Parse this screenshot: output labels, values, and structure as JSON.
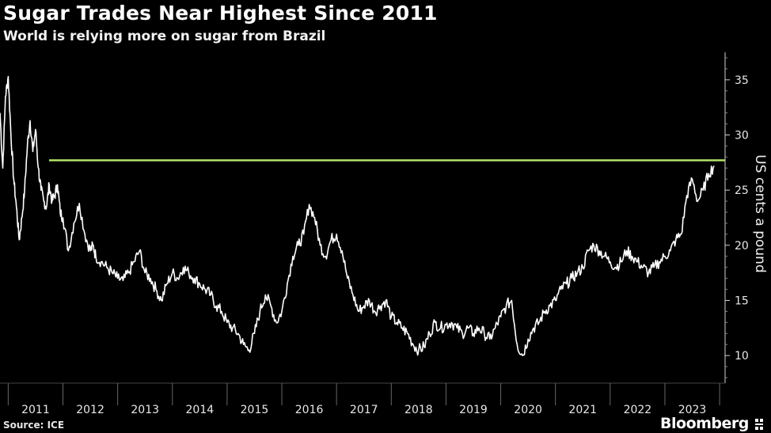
{
  "header": {
    "title": "Sugar Trades Near Highest Since 2011",
    "subtitle": "World is relying more on sugar from Brazil"
  },
  "footer": {
    "source": "Source: ICE",
    "brand": "Bloomberg"
  },
  "colors": {
    "background": "#000000",
    "line": "#ffffff",
    "reference_line": "#b4e36a"
  },
  "chart_data": {
    "type": "line",
    "title": "Sugar Trades Near Highest Since 2011",
    "subtitle": "World is relying more on sugar from Brazil",
    "xlabel": "",
    "ylabel": "US cents a pound",
    "xlim": [
      2010.85,
      2024.1
    ],
    "ylim": [
      7.5,
      37.5
    ],
    "y_ticks": [
      10,
      15,
      20,
      25,
      30,
      35
    ],
    "x_ticks": [
      "2011",
      "2012",
      "2013",
      "2014",
      "2015",
      "2016",
      "2017",
      "2018",
      "2019",
      "2020",
      "2021",
      "2022",
      "2023"
    ],
    "y_axis_position": "right",
    "grid": false,
    "reference_line": {
      "value": 27.7
    },
    "series": [
      {
        "x": [
          2010.85,
          2010.9,
          2010.95,
          2011.0,
          2011.05,
          2011.1,
          2011.15,
          2011.2,
          2011.25,
          2011.3,
          2011.35,
          2011.4,
          2011.45,
          2011.5,
          2011.55,
          2011.6,
          2011.65,
          2011.7,
          2011.75,
          2011.8,
          2011.85,
          2011.9,
          2011.95,
          2012.0,
          2012.1,
          2012.2,
          2012.3,
          2012.4,
          2012.5,
          2012.55,
          2012.6,
          2012.7,
          2012.8,
          2012.9,
          2013.0,
          2013.1,
          2013.2,
          2013.3,
          2013.4,
          2013.5,
          2013.6,
          2013.7,
          2013.8,
          2013.9,
          2014.0,
          2014.1,
          2014.2,
          2014.3,
          2014.4,
          2014.5,
          2014.6,
          2014.7,
          2014.8,
          2014.9,
          2015.0,
          2015.1,
          2015.2,
          2015.3,
          2015.4,
          2015.5,
          2015.6,
          2015.7,
          2015.8,
          2015.9,
          2016.0,
          2016.1,
          2016.2,
          2016.3,
          2016.4,
          2016.5,
          2016.6,
          2016.7,
          2016.8,
          2016.9,
          2017.0,
          2017.1,
          2017.2,
          2017.3,
          2017.4,
          2017.5,
          2017.6,
          2017.7,
          2017.8,
          2017.9,
          2018.0,
          2018.1,
          2018.2,
          2018.3,
          2018.4,
          2018.5,
          2018.6,
          2018.7,
          2018.8,
          2018.9,
          2019.0,
          2019.1,
          2019.2,
          2019.3,
          2019.4,
          2019.5,
          2019.6,
          2019.7,
          2019.8,
          2019.9,
          2020.0,
          2020.1,
          2020.2,
          2020.3,
          2020.4,
          2020.5,
          2020.6,
          2020.7,
          2020.8,
          2020.9,
          2021.0,
          2021.1,
          2021.2,
          2021.3,
          2021.4,
          2021.5,
          2021.6,
          2021.7,
          2021.8,
          2021.9,
          2022.0,
          2022.1,
          2022.2,
          2022.3,
          2022.4,
          2022.5,
          2022.6,
          2022.7,
          2022.8,
          2022.9,
          2023.0,
          2023.1,
          2023.2,
          2023.3,
          2023.4,
          2023.5,
          2023.6,
          2023.7,
          2023.8,
          2023.9
        ],
        "y": [
          32.0,
          27.0,
          33.5,
          35.3,
          30.0,
          26.0,
          23.5,
          20.5,
          22.5,
          25.0,
          29.0,
          31.3,
          28.5,
          30.5,
          27.0,
          25.0,
          24.0,
          23.5,
          25.5,
          24.0,
          24.5,
          25.5,
          23.0,
          22.5,
          19.5,
          22.0,
          23.8,
          21.0,
          19.5,
          20.0,
          19.0,
          18.5,
          18.0,
          17.5,
          17.0,
          16.8,
          17.5,
          18.5,
          19.5,
          17.5,
          17.0,
          16.0,
          15.0,
          16.5,
          17.5,
          17.0,
          18.0,
          17.5,
          17.0,
          16.5,
          16.0,
          15.5,
          14.5,
          14.0,
          13.0,
          12.5,
          12.0,
          11.0,
          10.5,
          12.0,
          14.0,
          15.5,
          14.5,
          13.0,
          14.0,
          16.5,
          19.0,
          20.0,
          21.0,
          23.7,
          22.5,
          20.0,
          19.0,
          20.5,
          21.0,
          19.5,
          17.0,
          15.5,
          14.0,
          14.5,
          15.0,
          14.0,
          14.5,
          15.0,
          13.5,
          13.0,
          12.5,
          12.0,
          11.0,
          10.5,
          10.8,
          12.0,
          13.0,
          12.5,
          12.8,
          13.0,
          12.5,
          12.0,
          12.5,
          12.0,
          12.5,
          12.0,
          11.5,
          12.5,
          13.5,
          14.5,
          15.0,
          11.0,
          10.0,
          11.5,
          12.5,
          13.0,
          14.0,
          14.5,
          15.0,
          16.0,
          16.5,
          17.0,
          17.5,
          18.0,
          19.5,
          20.0,
          19.5,
          19.0,
          18.5,
          18.0,
          18.5,
          19.5,
          19.0,
          18.5,
          18.0,
          17.5,
          18.0,
          18.5,
          19.0,
          19.5,
          20.5,
          21.0,
          24.5,
          26.0,
          24.0,
          25.0,
          26.5,
          27.2
        ]
      }
    ]
  }
}
